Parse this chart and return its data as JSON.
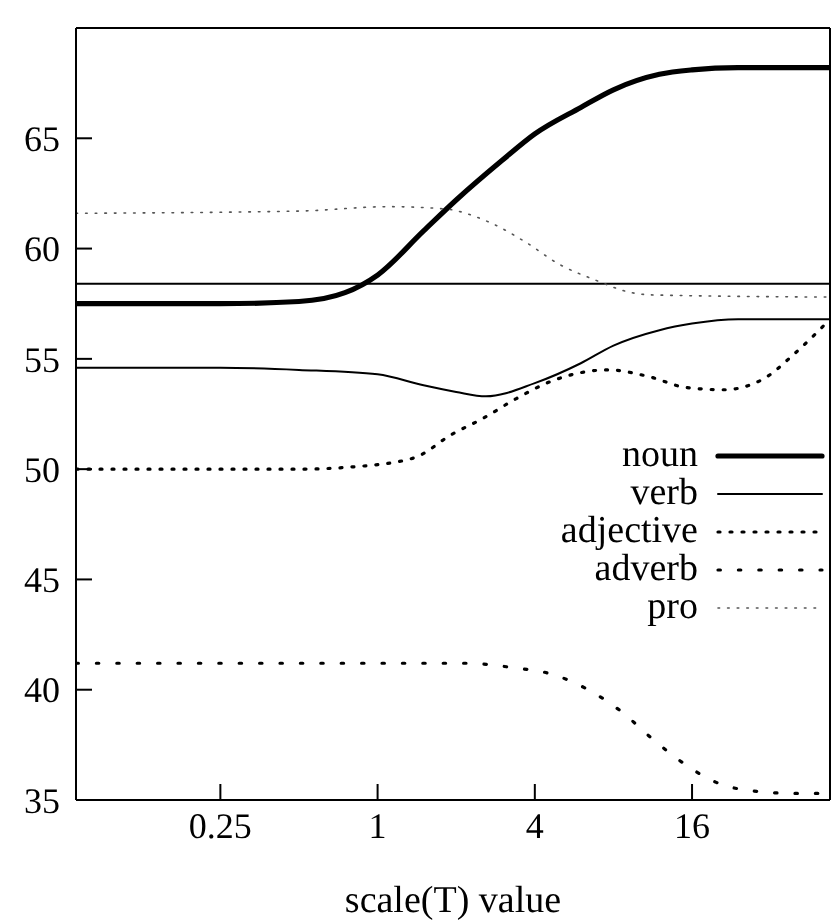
{
  "chart_data": {
    "type": "line",
    "xlabel": "scale(T) value",
    "log": "x",
    "xlim": [
      0.07,
      54
    ],
    "xticks": [
      0.25,
      1,
      4,
      16
    ],
    "ylim": [
      35,
      70
    ],
    "yticks": [
      35,
      40,
      45,
      50,
      55,
      60,
      65
    ],
    "grid": false,
    "legend": "right",
    "marker": "none",
    "ref_lines": [
      {
        "axis": "y",
        "value": 58.4,
        "color": "#000000",
        "line_style": "solid"
      }
    ],
    "series": [
      {
        "name": "noun",
        "color": "#000000",
        "line_style": "solid",
        "x": [
          0.07,
          0.125,
          0.25,
          0.5,
          0.75,
          1,
          1.5,
          2,
          3,
          4,
          6,
          8,
          12,
          16,
          24,
          54
        ],
        "values": [
          57.5,
          57.5,
          57.5,
          57.6,
          58.0,
          58.8,
          60.8,
          62.2,
          64.0,
          65.2,
          66.4,
          67.2,
          67.9,
          68.1,
          68.2,
          68.2
        ]
      },
      {
        "name": "verb",
        "color": "#000000",
        "line_style": "solid",
        "x": [
          0.07,
          0.25,
          0.5,
          1,
          1.5,
          2,
          2.6,
          4,
          6,
          8,
          12,
          16,
          24,
          54
        ],
        "values": [
          54.6,
          54.6,
          54.5,
          54.3,
          53.8,
          53.5,
          53.3,
          53.9,
          54.8,
          55.6,
          56.3,
          56.6,
          56.8,
          56.8
        ]
      },
      {
        "name": "adjective",
        "color": "#000000",
        "line_style": "dotted",
        "x": [
          0.07,
          0.25,
          0.5,
          0.8,
          1.37,
          1.94,
          2.53,
          3.4,
          4.66,
          7.66,
          10.9,
          15.2,
          21.2,
          30.1,
          39.2,
          51,
          54
        ],
        "values": [
          50,
          50,
          50,
          50.1,
          50.5,
          51.6,
          52.3,
          53.2,
          54.0,
          54.5,
          54.2,
          53.7,
          53.6,
          54.1,
          55.2,
          56.5,
          56.8
        ]
      },
      {
        "name": "adverb",
        "color": "#000000",
        "line_style": "dotted",
        "x": [
          0.07,
          1,
          2.2,
          3.3,
          4.66,
          6.4,
          8.6,
          11.2,
          14.7,
          19.8,
          27.7,
          39.4,
          54
        ],
        "values": [
          41.2,
          41.2,
          41.2,
          41.0,
          40.7,
          40.0,
          39.0,
          37.8,
          36.7,
          35.8,
          35.4,
          35.3,
          35.3
        ]
      },
      {
        "name": "pro",
        "color": "#555555",
        "line_style": "dotted",
        "x": [
          0.07,
          0.5,
          1.1,
          1.8,
          2.67,
          3.68,
          4.94,
          6.73,
          9.4,
          11.2,
          54
        ],
        "values": [
          61.6,
          61.7,
          61.9,
          61.8,
          61.2,
          60.3,
          59.3,
          58.6,
          58.0,
          57.9,
          57.8
        ]
      }
    ]
  }
}
